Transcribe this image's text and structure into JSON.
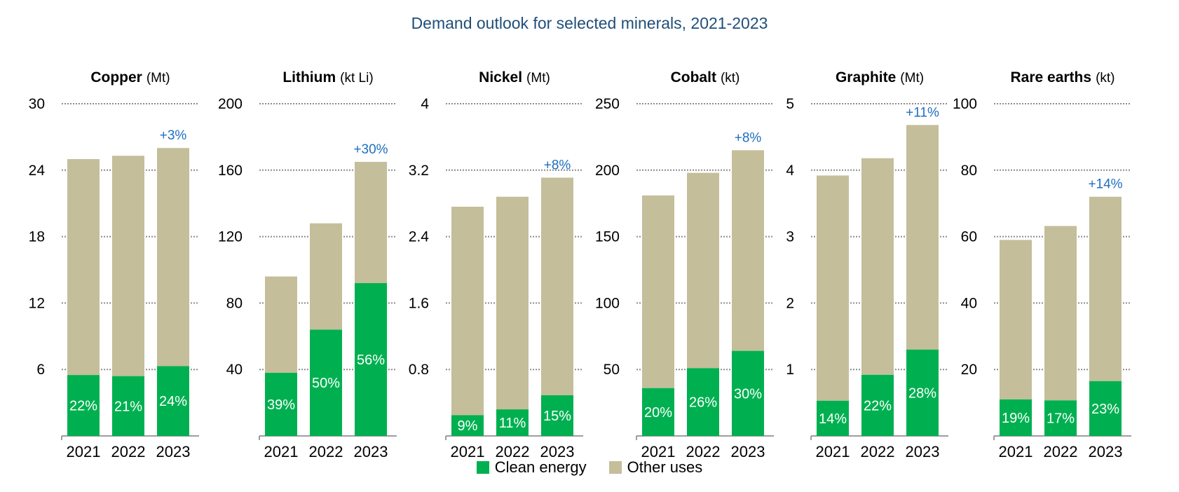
{
  "title": "Demand outlook for selected minerals, 2021-2023",
  "colors": {
    "clean": "#00b050",
    "other": "#c4be9a",
    "grid": "#8c8c8c",
    "growth": "#1f6fbf"
  },
  "legend": [
    {
      "name": "Clean energy",
      "color": "#00b050"
    },
    {
      "name": "Other uses",
      "color": "#c4be9a"
    }
  ],
  "chart_data": [
    {
      "type": "bar",
      "stacked": true,
      "name": "Copper",
      "unit": "(Mt)",
      "categories": [
        "2021",
        "2022",
        "2023"
      ],
      "series": [
        {
          "name": "Clean energy",
          "values": [
            5.5,
            5.4,
            6.3
          ]
        },
        {
          "name": "Other uses",
          "values": [
            19.5,
            19.9,
            19.7
          ]
        }
      ],
      "totals": [
        25.0,
        25.3,
        26.0
      ],
      "share_labels": [
        "22%",
        "21%",
        "24%"
      ],
      "growth_label": "+3%",
      "ylim": [
        0,
        30
      ],
      "yticks": [
        6,
        12,
        18,
        24,
        30
      ],
      "grid": true
    },
    {
      "type": "bar",
      "stacked": true,
      "name": "Lithium",
      "unit": "(kt Li)",
      "categories": [
        "2021",
        "2022",
        "2023"
      ],
      "series": [
        {
          "name": "Clean energy",
          "values": [
            38,
            64,
            92
          ]
        },
        {
          "name": "Other uses",
          "values": [
            58,
            64,
            73
          ]
        }
      ],
      "totals": [
        96,
        128,
        165
      ],
      "share_labels": [
        "39%",
        "50%",
        "56%"
      ],
      "growth_label": "+30%",
      "ylim": [
        0,
        200
      ],
      "yticks": [
        40,
        80,
        120,
        160,
        200
      ],
      "grid": true
    },
    {
      "type": "bar",
      "stacked": true,
      "name": "Nickel",
      "unit": "(Mt)",
      "categories": [
        "2021",
        "2022",
        "2023"
      ],
      "series": [
        {
          "name": "Clean energy",
          "values": [
            0.25,
            0.32,
            0.49
          ]
        },
        {
          "name": "Other uses",
          "values": [
            2.51,
            2.56,
            2.62
          ]
        }
      ],
      "totals": [
        2.76,
        2.88,
        3.11
      ],
      "share_labels": [
        "9%",
        "11%",
        "15%"
      ],
      "growth_label": "+8%",
      "ylim": [
        0,
        4.0
      ],
      "yticks": [
        0.8,
        1.6,
        2.4,
        3.2,
        4.0
      ],
      "grid": true
    },
    {
      "type": "bar",
      "stacked": true,
      "name": "Cobalt",
      "unit": "(kt)",
      "categories": [
        "2021",
        "2022",
        "2023"
      ],
      "series": [
        {
          "name": "Clean energy",
          "values": [
            36,
            51,
            64
          ]
        },
        {
          "name": "Other uses",
          "values": [
            145,
            147,
            151
          ]
        }
      ],
      "totals": [
        181,
        198,
        215
      ],
      "share_labels": [
        "20%",
        "26%",
        "30%"
      ],
      "growth_label": "+8%",
      "ylim": [
        0,
        250
      ],
      "yticks": [
        50,
        100,
        150,
        200,
        250
      ],
      "grid": true
    },
    {
      "type": "bar",
      "stacked": true,
      "name": "Graphite",
      "unit": "(Mt)",
      "categories": [
        "2021",
        "2022",
        "2023"
      ],
      "series": [
        {
          "name": "Clean energy",
          "values": [
            0.53,
            0.92,
            1.3
          ]
        },
        {
          "name": "Other uses",
          "values": [
            3.39,
            3.26,
            3.38
          ]
        }
      ],
      "totals": [
        3.92,
        4.18,
        4.68
      ],
      "share_labels": [
        "14%",
        "22%",
        "28%"
      ],
      "growth_label": "+11%",
      "ylim": [
        0,
        5
      ],
      "yticks": [
        1,
        2,
        3,
        4,
        5
      ],
      "grid": true
    },
    {
      "type": "bar",
      "stacked": true,
      "name": "Rare earths",
      "unit": "(kt)",
      "categories": [
        "2021",
        "2022",
        "2023"
      ],
      "series": [
        {
          "name": "Clean energy",
          "values": [
            11,
            10.7,
            16.5
          ]
        },
        {
          "name": "Other uses",
          "values": [
            48,
            52.5,
            55.5
          ]
        }
      ],
      "totals": [
        59,
        63.2,
        72
      ],
      "share_labels": [
        "19%",
        "17%",
        "23%"
      ],
      "growth_label": "+14%",
      "ylim": [
        0,
        100
      ],
      "yticks": [
        20,
        40,
        60,
        80,
        100
      ],
      "grid": true
    }
  ]
}
